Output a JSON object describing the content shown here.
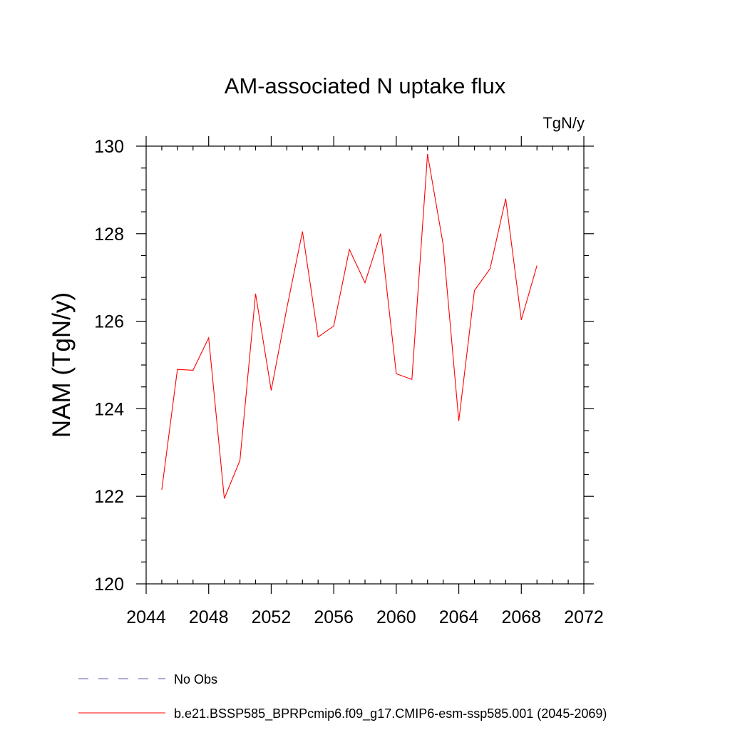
{
  "chart_data": {
    "type": "line",
    "title": "AM-associated N uptake flux",
    "units_label": "TgN/y",
    "ylabel": "NAM  (TgN/y)",
    "xlabel": "",
    "xlim": [
      2044,
      2072
    ],
    "ylim": [
      120,
      130
    ],
    "x_ticks": [
      2044,
      2048,
      2052,
      2056,
      2060,
      2064,
      2068,
      2072
    ],
    "y_ticks": [
      120,
      122,
      124,
      126,
      128,
      130
    ],
    "grid": false,
    "series": [
      {
        "name": "b.e21.BSSP585_BPRPcmip6.f09_g17.CMIP6-esm-ssp585.001 (2045-2069)",
        "color": "#ff0000",
        "x": [
          2045,
          2046,
          2047,
          2048,
          2049,
          2050,
          2051,
          2052,
          2053,
          2054,
          2055,
          2056,
          2057,
          2058,
          2059,
          2060,
          2061,
          2062,
          2063,
          2064,
          2065,
          2066,
          2067,
          2068,
          2069
        ],
        "y": [
          122.15,
          124.9,
          124.88,
          125.62,
          121.95,
          122.82,
          126.63,
          124.42,
          126.3,
          128.05,
          125.64,
          125.89,
          127.64,
          126.88,
          128.0,
          124.8,
          124.67,
          129.82,
          127.75,
          123.72,
          126.7,
          127.2,
          128.8,
          126.03,
          127.27
        ]
      }
    ],
    "legend": [
      {
        "label": "No Obs",
        "style": "dashed",
        "color": "#6655aa"
      },
      {
        "label": "b.e21.BSSP585_BPRPcmip6.f09_g17.CMIP6-esm-ssp585.001 (2045-2069)",
        "style": "solid",
        "color": "#ff0000"
      }
    ],
    "legend_position": "bottom"
  }
}
